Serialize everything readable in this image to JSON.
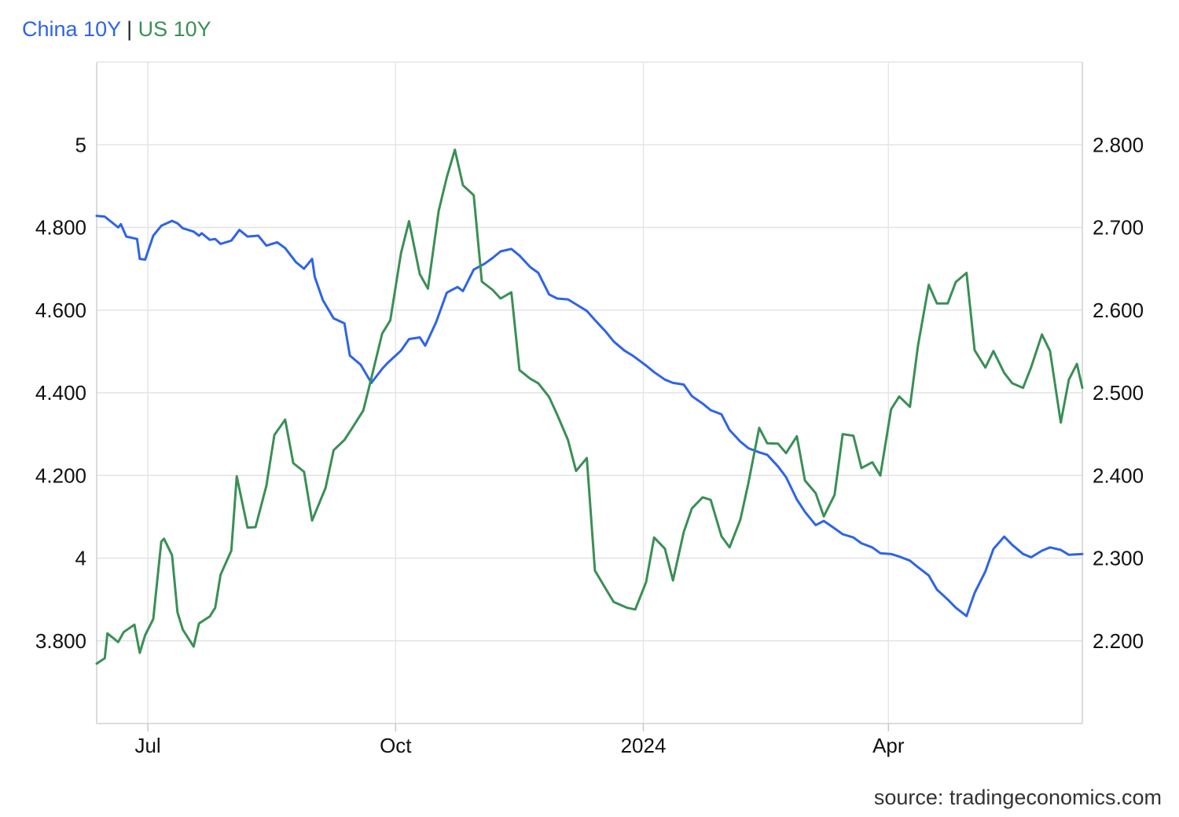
{
  "chart_data": {
    "type": "line",
    "title_parts": {
      "left": "China 10Y",
      "separator": " | ",
      "right": "US 10Y"
    },
    "source": "source: tradingeconomics.com",
    "x_axis": {
      "start": "2023-06-12",
      "end": "2024-06-12",
      "ticks": [
        {
          "label": "Jul",
          "date": "2023-07-01"
        },
        {
          "label": "Oct",
          "date": "2023-10-01"
        },
        {
          "label": "2024",
          "date": "2024-01-01"
        },
        {
          "label": "Apr",
          "date": "2024-04-01"
        }
      ]
    },
    "y_left": {
      "series": "US 10Y",
      "range": [
        3.6,
        5.2
      ],
      "ticks": [
        {
          "value": 3.8,
          "label": "3.800"
        },
        {
          "value": 4.0,
          "label": "4"
        },
        {
          "value": 4.2,
          "label": "4.200"
        },
        {
          "value": 4.4,
          "label": "4.400"
        },
        {
          "value": 4.6,
          "label": "4.600"
        },
        {
          "value": 4.8,
          "label": "4.800"
        },
        {
          "value": 5.0,
          "label": "5"
        }
      ]
    },
    "y_right": {
      "series": "China 10Y",
      "range": [
        2.1,
        2.9
      ],
      "ticks": [
        {
          "value": 2.2,
          "label": "2.200"
        },
        {
          "value": 2.3,
          "label": "2.300"
        },
        {
          "value": 2.4,
          "label": "2.400"
        },
        {
          "value": 2.5,
          "label": "2.500"
        },
        {
          "value": 2.6,
          "label": "2.600"
        },
        {
          "value": 2.7,
          "label": "2.700"
        },
        {
          "value": 2.8,
          "label": "2.800"
        }
      ]
    },
    "grid": true,
    "series": [
      {
        "name": "China 10Y",
        "axis": "right",
        "color": "#2e64e6",
        "points": [
          [
            "2023-06-12",
            2.714
          ],
          [
            "2023-06-15",
            2.713
          ],
          [
            "2023-06-20",
            2.7
          ],
          [
            "2023-06-21",
            2.704
          ],
          [
            "2023-06-23",
            2.689
          ],
          [
            "2023-06-27",
            2.686
          ],
          [
            "2023-06-28",
            2.662
          ],
          [
            "2023-06-30",
            2.661
          ],
          [
            "2023-07-03",
            2.69
          ],
          [
            "2023-07-06",
            2.702
          ],
          [
            "2023-07-10",
            2.708
          ],
          [
            "2023-07-12",
            2.705
          ],
          [
            "2023-07-14",
            2.699
          ],
          [
            "2023-07-18",
            2.695
          ],
          [
            "2023-07-20",
            2.69
          ],
          [
            "2023-07-21",
            2.693
          ],
          [
            "2023-07-24",
            2.685
          ],
          [
            "2023-07-26",
            2.686
          ],
          [
            "2023-07-28",
            2.68
          ],
          [
            "2023-08-01",
            2.684
          ],
          [
            "2023-08-04",
            2.697
          ],
          [
            "2023-08-07",
            2.689
          ],
          [
            "2023-08-11",
            2.69
          ],
          [
            "2023-08-14",
            2.678
          ],
          [
            "2023-08-18",
            2.682
          ],
          [
            "2023-08-21",
            2.675
          ],
          [
            "2023-08-25",
            2.658
          ],
          [
            "2023-08-28",
            2.65
          ],
          [
            "2023-08-31",
            2.662
          ],
          [
            "2023-09-01",
            2.64
          ],
          [
            "2023-09-04",
            2.612
          ],
          [
            "2023-09-08",
            2.59
          ],
          [
            "2023-09-12",
            2.584
          ],
          [
            "2023-09-14",
            2.545
          ],
          [
            "2023-09-18",
            2.534
          ],
          [
            "2023-09-22",
            2.512
          ],
          [
            "2023-09-26",
            2.529
          ],
          [
            "2023-09-28",
            2.536
          ],
          [
            "2023-10-03",
            2.551
          ],
          [
            "2023-10-06",
            2.565
          ],
          [
            "2023-10-10",
            2.567
          ],
          [
            "2023-10-12",
            2.557
          ],
          [
            "2023-10-16",
            2.585
          ],
          [
            "2023-10-20",
            2.621
          ],
          [
            "2023-10-24",
            2.628
          ],
          [
            "2023-10-26",
            2.623
          ],
          [
            "2023-10-30",
            2.649
          ],
          [
            "2023-11-03",
            2.656
          ],
          [
            "2023-11-06",
            2.663
          ],
          [
            "2023-11-09",
            2.671
          ],
          [
            "2023-11-13",
            2.674
          ],
          [
            "2023-11-16",
            2.666
          ],
          [
            "2023-11-20",
            2.652
          ],
          [
            "2023-11-23",
            2.645
          ],
          [
            "2023-11-27",
            2.619
          ],
          [
            "2023-11-30",
            2.614
          ],
          [
            "2023-12-04",
            2.613
          ],
          [
            "2023-12-07",
            2.607
          ],
          [
            "2023-12-11",
            2.599
          ],
          [
            "2023-12-14",
            2.588
          ],
          [
            "2023-12-18",
            2.574
          ],
          [
            "2023-12-21",
            2.562
          ],
          [
            "2023-12-25",
            2.551
          ],
          [
            "2023-12-28",
            2.545
          ],
          [
            "2024-01-02",
            2.533
          ],
          [
            "2024-01-05",
            2.525
          ],
          [
            "2024-01-09",
            2.516
          ],
          [
            "2024-01-12",
            2.512
          ],
          [
            "2024-01-16",
            2.51
          ],
          [
            "2024-01-19",
            2.496
          ],
          [
            "2024-01-23",
            2.487
          ],
          [
            "2024-01-26",
            2.479
          ],
          [
            "2024-01-30",
            2.474
          ],
          [
            "2024-02-02",
            2.455
          ],
          [
            "2024-02-06",
            2.441
          ],
          [
            "2024-02-09",
            2.433
          ],
          [
            "2024-02-13",
            2.428
          ],
          [
            "2024-02-16",
            2.425
          ],
          [
            "2024-02-20",
            2.411
          ],
          [
            "2024-02-23",
            2.398
          ],
          [
            "2024-02-27",
            2.371
          ],
          [
            "2024-03-01",
            2.356
          ],
          [
            "2024-03-05",
            2.34
          ],
          [
            "2024-03-08",
            2.345
          ],
          [
            "2024-03-12",
            2.336
          ],
          [
            "2024-03-15",
            2.329
          ],
          [
            "2024-03-19",
            2.325
          ],
          [
            "2024-03-22",
            2.318
          ],
          [
            "2024-03-26",
            2.313
          ],
          [
            "2024-03-29",
            2.306
          ],
          [
            "2024-04-02",
            2.305
          ],
          [
            "2024-04-05",
            2.302
          ],
          [
            "2024-04-09",
            2.297
          ],
          [
            "2024-04-12",
            2.289
          ],
          [
            "2024-04-16",
            2.279
          ],
          [
            "2024-04-19",
            2.262
          ],
          [
            "2024-04-23",
            2.25
          ],
          [
            "2024-04-26",
            2.24
          ],
          [
            "2024-04-30",
            2.23
          ],
          [
            "2024-05-03",
            2.258
          ],
          [
            "2024-05-07",
            2.284
          ],
          [
            "2024-05-10",
            2.311
          ],
          [
            "2024-05-14",
            2.326
          ],
          [
            "2024-05-17",
            2.316
          ],
          [
            "2024-05-21",
            2.305
          ],
          [
            "2024-05-24",
            2.301
          ],
          [
            "2024-05-28",
            2.309
          ],
          [
            "2024-05-31",
            2.313
          ],
          [
            "2024-06-04",
            2.31
          ],
          [
            "2024-06-07",
            2.304
          ],
          [
            "2024-06-12",
            2.305
          ]
        ]
      },
      {
        "name": "US 10Y",
        "axis": "left",
        "color": "#3a8f55",
        "points": [
          [
            "2023-06-12",
            3.745
          ],
          [
            "2023-06-15",
            3.758
          ],
          [
            "2023-06-16",
            3.818
          ],
          [
            "2023-06-20",
            3.797
          ],
          [
            "2023-06-22",
            3.821
          ],
          [
            "2023-06-26",
            3.839
          ],
          [
            "2023-06-28",
            3.771
          ],
          [
            "2023-06-30",
            3.814
          ],
          [
            "2023-07-03",
            3.853
          ],
          [
            "2023-07-06",
            4.04
          ],
          [
            "2023-07-07",
            4.047
          ],
          [
            "2023-07-10",
            4.007
          ],
          [
            "2023-07-12",
            3.869
          ],
          [
            "2023-07-14",
            3.827
          ],
          [
            "2023-07-18",
            3.786
          ],
          [
            "2023-07-20",
            3.842
          ],
          [
            "2023-07-24",
            3.859
          ],
          [
            "2023-07-26",
            3.88
          ],
          [
            "2023-07-28",
            3.96
          ],
          [
            "2023-08-01",
            4.018
          ],
          [
            "2023-08-03",
            4.198
          ],
          [
            "2023-08-07",
            4.074
          ],
          [
            "2023-08-10",
            4.075
          ],
          [
            "2023-08-14",
            4.175
          ],
          [
            "2023-08-17",
            4.298
          ],
          [
            "2023-08-21",
            4.335
          ],
          [
            "2023-08-24",
            4.23
          ],
          [
            "2023-08-28",
            4.209
          ],
          [
            "2023-08-31",
            4.091
          ],
          [
            "2023-09-05",
            4.17
          ],
          [
            "2023-09-08",
            4.261
          ],
          [
            "2023-09-12",
            4.286
          ],
          [
            "2023-09-15",
            4.316
          ],
          [
            "2023-09-19",
            4.357
          ],
          [
            "2023-09-22",
            4.436
          ],
          [
            "2023-09-26",
            4.543
          ],
          [
            "2023-09-29",
            4.575
          ],
          [
            "2023-10-03",
            4.738
          ],
          [
            "2023-10-06",
            4.815
          ],
          [
            "2023-10-10",
            4.687
          ],
          [
            "2023-10-13",
            4.652
          ],
          [
            "2023-10-17",
            4.84
          ],
          [
            "2023-10-20",
            4.921
          ],
          [
            "2023-10-23",
            4.988
          ],
          [
            "2023-10-26",
            4.902
          ],
          [
            "2023-10-30",
            4.878
          ],
          [
            "2023-11-02",
            4.669
          ],
          [
            "2023-11-06",
            4.649
          ],
          [
            "2023-11-09",
            4.628
          ],
          [
            "2023-11-13",
            4.643
          ],
          [
            "2023-11-16",
            4.455
          ],
          [
            "2023-11-20",
            4.434
          ],
          [
            "2023-11-23",
            4.423
          ],
          [
            "2023-11-27",
            4.39
          ],
          [
            "2023-11-30",
            4.347
          ],
          [
            "2023-12-04",
            4.286
          ],
          [
            "2023-12-07",
            4.211
          ],
          [
            "2023-12-11",
            4.242
          ],
          [
            "2023-12-14",
            3.97
          ],
          [
            "2023-12-18",
            3.926
          ],
          [
            "2023-12-21",
            3.894
          ],
          [
            "2023-12-26",
            3.88
          ],
          [
            "2023-12-29",
            3.876
          ],
          [
            "2024-01-02",
            3.942
          ],
          [
            "2024-01-05",
            4.05
          ],
          [
            "2024-01-09",
            4.023
          ],
          [
            "2024-01-12",
            3.946
          ],
          [
            "2024-01-16",
            4.063
          ],
          [
            "2024-01-19",
            4.12
          ],
          [
            "2024-01-23",
            4.147
          ],
          [
            "2024-01-26",
            4.141
          ],
          [
            "2024-01-30",
            4.053
          ],
          [
            "2024-02-02",
            4.026
          ],
          [
            "2024-02-06",
            4.093
          ],
          [
            "2024-02-09",
            4.181
          ],
          [
            "2024-02-13",
            4.315
          ],
          [
            "2024-02-16",
            4.278
          ],
          [
            "2024-02-20",
            4.277
          ],
          [
            "2024-02-23",
            4.254
          ],
          [
            "2024-02-27",
            4.295
          ],
          [
            "2024-03-01",
            4.188
          ],
          [
            "2024-03-05",
            4.157
          ],
          [
            "2024-03-08",
            4.101
          ],
          [
            "2024-03-12",
            4.153
          ],
          [
            "2024-03-15",
            4.3
          ],
          [
            "2024-03-19",
            4.296
          ],
          [
            "2024-03-22",
            4.218
          ],
          [
            "2024-03-26",
            4.232
          ],
          [
            "2024-03-29",
            4.2
          ],
          [
            "2024-04-02",
            4.36
          ],
          [
            "2024-04-05",
            4.391
          ],
          [
            "2024-04-09",
            4.366
          ],
          [
            "2024-04-12",
            4.515
          ],
          [
            "2024-04-16",
            4.661
          ],
          [
            "2024-04-19",
            4.616
          ],
          [
            "2024-04-23",
            4.616
          ],
          [
            "2024-04-26",
            4.668
          ],
          [
            "2024-04-30",
            4.69
          ],
          [
            "2024-05-03",
            4.503
          ],
          [
            "2024-05-07",
            4.461
          ],
          [
            "2024-05-10",
            4.501
          ],
          [
            "2024-05-14",
            4.448
          ],
          [
            "2024-05-17",
            4.423
          ],
          [
            "2024-05-21",
            4.412
          ],
          [
            "2024-05-24",
            4.462
          ],
          [
            "2024-05-28",
            4.541
          ],
          [
            "2024-05-31",
            4.501
          ],
          [
            "2024-06-04",
            4.328
          ],
          [
            "2024-06-07",
            4.432
          ],
          [
            "2024-06-10",
            4.47
          ],
          [
            "2024-06-12",
            4.412
          ]
        ]
      }
    ]
  }
}
